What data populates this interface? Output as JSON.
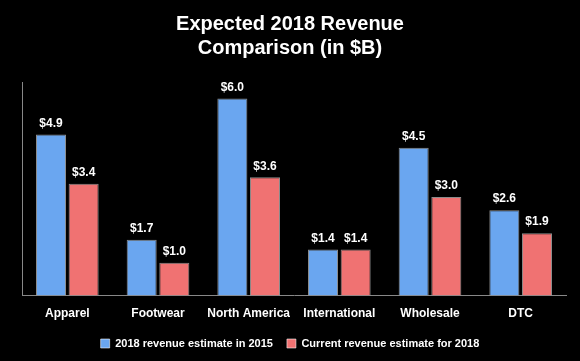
{
  "chart_data": {
    "type": "bar",
    "title": [
      "Expected 2018 Revenue",
      "Comparison (in $B)"
    ],
    "categories": [
      "Apparel",
      "Footwear",
      "North America",
      "International",
      "Wholesale",
      "DTC"
    ],
    "series": [
      {
        "name": "2018 revenue estimate in 2015",
        "color": "#6aa6f0",
        "values": [
          4.9,
          1.7,
          6.0,
          1.4,
          4.5,
          2.6
        ],
        "value_labels": [
          "$4.9",
          "$1.7",
          "$6.0",
          "$1.4",
          "$4.5",
          "$2.6"
        ]
      },
      {
        "name": "Current revenue estimate for 2018",
        "color": "#f07272",
        "values": [
          3.4,
          1.0,
          3.6,
          1.4,
          3.0,
          1.9
        ],
        "value_labels": [
          "$3.4",
          "$1.0",
          "$3.6",
          "$1.4",
          "$3.0",
          "$1.9"
        ]
      }
    ],
    "ylim": [
      0,
      6.5
    ],
    "grid": false,
    "legend": "bottom",
    "data_labels": true,
    "tick_labels": "x"
  }
}
